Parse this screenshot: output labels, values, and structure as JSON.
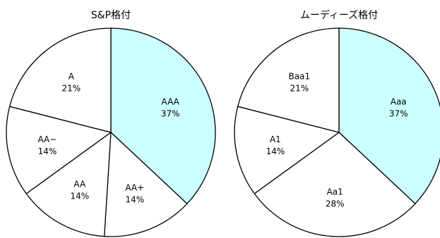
{
  "chart_data": [
    {
      "type": "pie",
      "title": "S&P格付",
      "slices": [
        {
          "label": "AAA",
          "value": 37,
          "display": "37%",
          "color": "#ccffff"
        },
        {
          "label": "AA+",
          "value": 14,
          "display": "14%",
          "color": "#ffffff"
        },
        {
          "label": "AA",
          "value": 14,
          "display": "14%",
          "color": "#ffffff"
        },
        {
          "label": "AA−",
          "value": 14,
          "display": "14%",
          "color": "#ffffff"
        },
        {
          "label": "A",
          "value": 21,
          "display": "21%",
          "color": "#ffffff"
        }
      ]
    },
    {
      "type": "pie",
      "title": "ムーディーズ格付",
      "slices": [
        {
          "label": "Aaa",
          "value": 37,
          "display": "37%",
          "color": "#ccffff"
        },
        {
          "label": "Aa1",
          "value": 28,
          "display": "28%",
          "color": "#ffffff"
        },
        {
          "label": "A1",
          "value": 14,
          "display": "14%",
          "color": "#ffffff"
        },
        {
          "label": "Baa1",
          "value": 21,
          "display": "21%",
          "color": "#ffffff"
        }
      ]
    }
  ],
  "colors": {
    "highlight": "#ccffff",
    "slice": "#ffffff",
    "border": "#000000"
  }
}
